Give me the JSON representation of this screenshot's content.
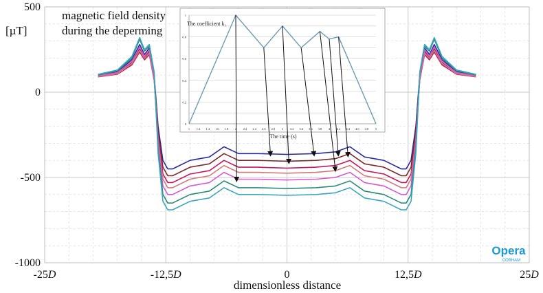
{
  "chart_data": [
    {
      "type": "line",
      "title": "",
      "annotation": [
        "magnetic field density",
        "during the deperming"
      ],
      "ylabel": "[µT]",
      "xlabel": "dimensionless distance",
      "xlim": [
        -25,
        25
      ],
      "ylim": [
        -1000,
        500
      ],
      "x_tick_labels": [
        "-25D",
        "-12,5D",
        "0",
        "12,5D",
        "25D"
      ],
      "y_tick_labels": [
        "500",
        "0",
        "-500",
        "-1000"
      ],
      "x_ticks": [
        -25,
        -12.5,
        0,
        12.5,
        25
      ],
      "y_ticks": [
        500,
        0,
        -500,
        -1000
      ],
      "grid": true,
      "logo": {
        "main": "Opera",
        "sub": "COBHAM"
      },
      "x": [
        -19.5,
        -17.5,
        -16,
        -15.2,
        -14.7,
        -14.2,
        -13.7,
        -13.3,
        -12.8,
        -12.3,
        -11.8,
        -10,
        -8,
        -6.5,
        -5,
        -3,
        0,
        3,
        5,
        6.5,
        8,
        10,
        11.8,
        12.3,
        12.8,
        13.3,
        13.7,
        14.2,
        14.7,
        15.2,
        16,
        17.5,
        19.5
      ],
      "series": [
        {
          "color": "#2a2aa0",
          "values": [
            100,
            120,
            190,
            280,
            220,
            260,
            100,
            -200,
            -400,
            -450,
            -450,
            -400,
            -380,
            -320,
            -360,
            -360,
            -365,
            -360,
            -350,
            -320,
            -380,
            -400,
            -450,
            -450,
            -400,
            -200,
            100,
            260,
            220,
            280,
            190,
            120,
            100
          ]
        },
        {
          "color": "#7a2a2a",
          "values": [
            95,
            112,
            175,
            255,
            205,
            240,
            85,
            -230,
            -440,
            -490,
            -490,
            -440,
            -420,
            -360,
            -400,
            -400,
            -405,
            -400,
            -390,
            -360,
            -420,
            -440,
            -490,
            -490,
            -440,
            -230,
            85,
            240,
            205,
            255,
            175,
            112,
            95
          ]
        },
        {
          "color": "#c2185b",
          "values": [
            90,
            105,
            160,
            235,
            190,
            220,
            70,
            -260,
            -480,
            -530,
            -530,
            -480,
            -460,
            -400,
            -440,
            -440,
            -445,
            -440,
            -430,
            -400,
            -460,
            -480,
            -530,
            -530,
            -480,
            -260,
            70,
            220,
            190,
            235,
            160,
            105,
            90
          ]
        },
        {
          "color": "#d07a7a",
          "values": [
            92,
            108,
            168,
            245,
            198,
            230,
            78,
            -280,
            -510,
            -560,
            -560,
            -510,
            -490,
            -430,
            -470,
            -470,
            -475,
            -470,
            -460,
            -430,
            -490,
            -510,
            -560,
            -560,
            -510,
            -280,
            78,
            230,
            198,
            245,
            168,
            108,
            92
          ]
        },
        {
          "color": "#d45ad4",
          "values": [
            96,
            115,
            180,
            265,
            210,
            248,
            90,
            -300,
            -550,
            -600,
            -600,
            -550,
            -530,
            -470,
            -510,
            -510,
            -515,
            -510,
            -500,
            -470,
            -530,
            -550,
            -600,
            -600,
            -550,
            -300,
            90,
            248,
            210,
            265,
            180,
            115,
            96
          ]
        },
        {
          "color": "#2a8a7a",
          "values": [
            100,
            125,
            200,
            310,
            240,
            270,
            110,
            -330,
            -600,
            -650,
            -650,
            -600,
            -580,
            -520,
            -560,
            -560,
            -565,
            -560,
            -550,
            -520,
            -580,
            -600,
            -650,
            -650,
            -600,
            -330,
            110,
            270,
            240,
            310,
            200,
            125,
            100
          ]
        },
        {
          "color": "#3aa6c0",
          "values": [
            105,
            130,
            210,
            320,
            250,
            280,
            118,
            -360,
            -640,
            -690,
            -690,
            -640,
            -620,
            -560,
            -600,
            -600,
            -605,
            -600,
            -590,
            -560,
            -620,
            -640,
            -690,
            -690,
            -640,
            -360,
            118,
            280,
            250,
            320,
            210,
            130,
            105
          ]
        }
      ]
    },
    {
      "type": "line",
      "title": "The coefficient k₁",
      "xlabel": "The time (s)",
      "ylabel": "",
      "xlim": [
        1,
        5
      ],
      "ylim": [
        0,
        1
      ],
      "x_tick_labels": [
        "1",
        "1.2",
        "1.4",
        "1.6",
        "1.8",
        "2",
        "2.2",
        "2.4",
        "2.6",
        "2.8",
        "3",
        "3.2",
        "3.4",
        "3.6",
        "3.8",
        "4",
        "4.2",
        "4.4",
        "4.6",
        "4.8",
        "5"
      ],
      "y_tick_labels": [
        "0",
        "0.2",
        "0.4",
        "0.6",
        "0.8",
        "1"
      ],
      "grid": true,
      "series": [
        {
          "color": "#6a9ab4",
          "x": [
            1,
            2,
            2.6,
            3,
            3.4,
            3.8,
            4,
            4.2,
            5
          ],
          "values": [
            0,
            1,
            0.7,
            0.9,
            0.7,
            0.85,
            0.78,
            0.8,
            0
          ]
        }
      ]
    }
  ]
}
